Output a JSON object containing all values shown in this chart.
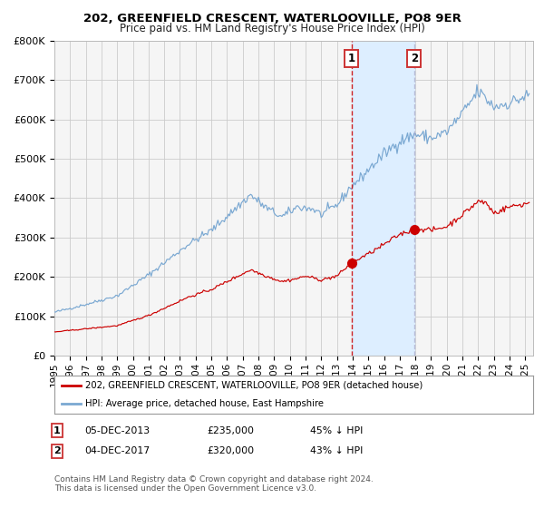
{
  "title": "202, GREENFIELD CRESCENT, WATERLOOVILLE, PO8 9ER",
  "subtitle": "Price paid vs. HM Land Registry's House Price Index (HPI)",
  "red_label": "202, GREENFIELD CRESCENT, WATERLOOVILLE, PO8 9ER (detached house)",
  "blue_label": "HPI: Average price, detached house, East Hampshire",
  "annotation1": {
    "label": "1",
    "date": "05-DEC-2013",
    "price": "£235,000",
    "hpi_pct": "45% ↓ HPI",
    "x_year": 2013.92,
    "y_val": 235000
  },
  "annotation2": {
    "label": "2",
    "date": "04-DEC-2017",
    "price": "£320,000",
    "hpi_pct": "43% ↓ HPI",
    "x_year": 2017.92,
    "y_val": 320000
  },
  "shade_start_year": 2013.92,
  "shade_end_year": 2017.92,
  "footer1": "Contains HM Land Registry data © Crown copyright and database right 2024.",
  "footer2": "This data is licensed under the Open Government Licence v3.0.",
  "ylim": [
    0,
    800000
  ],
  "yticks": [
    0,
    100000,
    200000,
    300000,
    400000,
    500000,
    600000,
    700000,
    800000
  ],
  "xlim_start": 1995.0,
  "xlim_end": 2025.5,
  "background_color": "#f5f5f5",
  "grid_color": "#cccccc",
  "red_line_color": "#cc0000",
  "blue_line_color": "#7aa8d2",
  "shade_color": "#ddeeff",
  "vline1_color": "#cc0000",
  "vline2_color": "#aaaacc",
  "box_edge_color": "#cc3333"
}
